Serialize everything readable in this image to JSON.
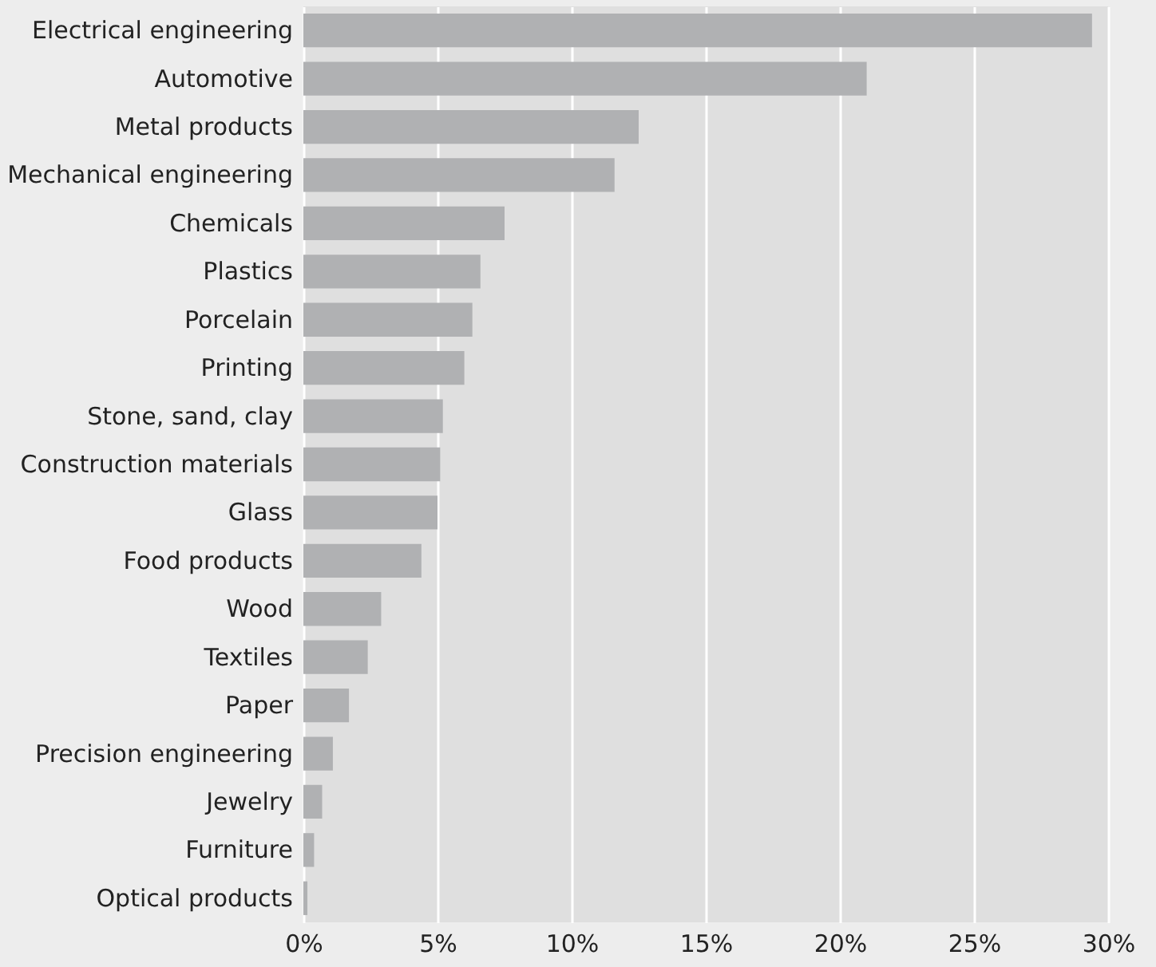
{
  "chart_data": {
    "type": "bar",
    "orientation": "horizontal",
    "categories": [
      "Electrical engineering",
      "Automotive",
      "Metal products",
      "Mechanical engineering",
      "Chemicals",
      "Plastics",
      "Porcelain",
      "Printing",
      "Stone, sand, clay",
      "Construction materials",
      "Glass",
      "Food products",
      "Wood",
      "Textiles",
      "Paper",
      "Precision engineering",
      "Jewelry",
      "Furniture",
      "Optical products"
    ],
    "values": [
      29.4,
      21.0,
      12.5,
      11.6,
      7.5,
      6.6,
      6.3,
      6.0,
      5.2,
      5.1,
      5.0,
      4.4,
      2.9,
      2.4,
      1.7,
      1.1,
      0.7,
      0.4,
      0.15
    ],
    "color": "#b0b1b3",
    "xlim": [
      0,
      30
    ],
    "xticks": [
      {
        "value": 0,
        "label": "0%"
      },
      {
        "value": 5,
        "label": "5%"
      },
      {
        "value": 10,
        "label": "10%"
      },
      {
        "value": 15,
        "label": "15%"
      },
      {
        "value": 20,
        "label": "20%"
      },
      {
        "value": 25,
        "label": "25%"
      },
      {
        "value": 30,
        "label": "30%"
      }
    ],
    "grid": "x"
  }
}
